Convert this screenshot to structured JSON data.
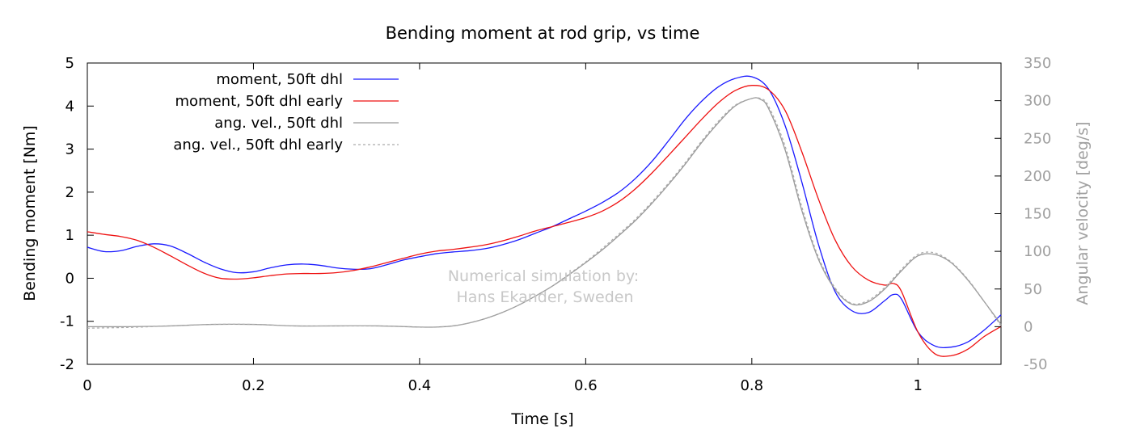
{
  "chart_data": {
    "type": "line",
    "title": "Bending moment at rod grip, vs time",
    "xlabel": "Time [s]",
    "ylabel": "Bending moment [Nm]",
    "y2label": "Angular velocity [deg/s]",
    "xlim": [
      0,
      1.1
    ],
    "ylim": [
      -2,
      5
    ],
    "y2lim": [
      -50,
      350
    ],
    "x_ticks": [
      0,
      0.2,
      0.4,
      0.6,
      0.8,
      1
    ],
    "y_ticks": [
      -2,
      -1,
      0,
      1,
      2,
      3,
      4,
      5
    ],
    "y2_ticks": [
      -50,
      0,
      50,
      100,
      150,
      200,
      250,
      300,
      350
    ],
    "grid": false,
    "legend_position": "top-left",
    "watermark": [
      "Numerical simulation by:",
      "Hans Ekander, Sweden"
    ],
    "colors": {
      "moment": "#1a1aff",
      "moment_early": "#ee1111",
      "angvel": "#999999",
      "angvel_early": "#aaaaaa",
      "y2_axis": "#a0a0a0",
      "watermark": "#c8c8c8"
    },
    "series": [
      {
        "name": "moment, 50ft dhl",
        "axis": "y1",
        "style": "solid",
        "color": "#1a1aff",
        "points": [
          [
            0,
            0.72
          ],
          [
            0.02,
            0.62
          ],
          [
            0.04,
            0.64
          ],
          [
            0.06,
            0.74
          ],
          [
            0.08,
            0.8
          ],
          [
            0.1,
            0.75
          ],
          [
            0.12,
            0.58
          ],
          [
            0.14,
            0.38
          ],
          [
            0.16,
            0.22
          ],
          [
            0.18,
            0.13
          ],
          [
            0.2,
            0.15
          ],
          [
            0.22,
            0.24
          ],
          [
            0.24,
            0.31
          ],
          [
            0.26,
            0.33
          ],
          [
            0.28,
            0.3
          ],
          [
            0.3,
            0.24
          ],
          [
            0.32,
            0.21
          ],
          [
            0.34,
            0.22
          ],
          [
            0.36,
            0.31
          ],
          [
            0.38,
            0.42
          ],
          [
            0.4,
            0.5
          ],
          [
            0.42,
            0.57
          ],
          [
            0.44,
            0.61
          ],
          [
            0.46,
            0.64
          ],
          [
            0.48,
            0.69
          ],
          [
            0.5,
            0.78
          ],
          [
            0.52,
            0.9
          ],
          [
            0.54,
            1.05
          ],
          [
            0.56,
            1.2
          ],
          [
            0.58,
            1.38
          ],
          [
            0.6,
            1.56
          ],
          [
            0.62,
            1.76
          ],
          [
            0.64,
            2.0
          ],
          [
            0.66,
            2.32
          ],
          [
            0.68,
            2.72
          ],
          [
            0.7,
            3.2
          ],
          [
            0.72,
            3.7
          ],
          [
            0.74,
            4.12
          ],
          [
            0.76,
            4.45
          ],
          [
            0.78,
            4.64
          ],
          [
            0.8,
            4.68
          ],
          [
            0.82,
            4.4
          ],
          [
            0.84,
            3.55
          ],
          [
            0.86,
            2.25
          ],
          [
            0.88,
            0.8
          ],
          [
            0.9,
            -0.3
          ],
          [
            0.92,
            -0.75
          ],
          [
            0.94,
            -0.8
          ],
          [
            0.96,
            -0.52
          ],
          [
            0.97,
            -0.38
          ],
          [
            0.98,
            -0.48
          ],
          [
            1.0,
            -1.25
          ],
          [
            1.02,
            -1.57
          ],
          [
            1.04,
            -1.6
          ],
          [
            1.06,
            -1.48
          ],
          [
            1.08,
            -1.2
          ],
          [
            1.1,
            -0.85
          ]
        ]
      },
      {
        "name": "moment, 50ft dhl early",
        "axis": "y1",
        "style": "solid",
        "color": "#ee1111",
        "points": [
          [
            0,
            1.08
          ],
          [
            0.02,
            1.02
          ],
          [
            0.04,
            0.97
          ],
          [
            0.06,
            0.88
          ],
          [
            0.08,
            0.72
          ],
          [
            0.1,
            0.52
          ],
          [
            0.12,
            0.31
          ],
          [
            0.14,
            0.12
          ],
          [
            0.16,
            0.0
          ],
          [
            0.18,
            -0.02
          ],
          [
            0.2,
            0.01
          ],
          [
            0.22,
            0.06
          ],
          [
            0.24,
            0.1
          ],
          [
            0.26,
            0.11
          ],
          [
            0.28,
            0.11
          ],
          [
            0.3,
            0.13
          ],
          [
            0.32,
            0.18
          ],
          [
            0.34,
            0.26
          ],
          [
            0.36,
            0.36
          ],
          [
            0.38,
            0.46
          ],
          [
            0.4,
            0.56
          ],
          [
            0.42,
            0.63
          ],
          [
            0.44,
            0.67
          ],
          [
            0.46,
            0.72
          ],
          [
            0.48,
            0.78
          ],
          [
            0.5,
            0.87
          ],
          [
            0.52,
            0.98
          ],
          [
            0.54,
            1.1
          ],
          [
            0.56,
            1.2
          ],
          [
            0.58,
            1.3
          ],
          [
            0.6,
            1.41
          ],
          [
            0.62,
            1.56
          ],
          [
            0.64,
            1.78
          ],
          [
            0.66,
            2.08
          ],
          [
            0.68,
            2.45
          ],
          [
            0.7,
            2.86
          ],
          [
            0.72,
            3.28
          ],
          [
            0.74,
            3.7
          ],
          [
            0.76,
            4.08
          ],
          [
            0.78,
            4.36
          ],
          [
            0.8,
            4.48
          ],
          [
            0.82,
            4.38
          ],
          [
            0.84,
            3.9
          ],
          [
            0.86,
            2.95
          ],
          [
            0.88,
            1.85
          ],
          [
            0.9,
            0.9
          ],
          [
            0.92,
            0.28
          ],
          [
            0.94,
            -0.04
          ],
          [
            0.96,
            -0.16
          ],
          [
            0.97,
            -0.12
          ],
          [
            0.98,
            -0.3
          ],
          [
            1.0,
            -1.25
          ],
          [
            1.02,
            -1.75
          ],
          [
            1.04,
            -1.8
          ],
          [
            1.06,
            -1.65
          ],
          [
            1.08,
            -1.35
          ],
          [
            1.1,
            -1.12
          ]
        ]
      },
      {
        "name": "ang. vel., 50ft dhl",
        "axis": "y2",
        "style": "solid",
        "color": "#999999",
        "points": [
          [
            0,
            0
          ],
          [
            0.05,
            0
          ],
          [
            0.1,
            1
          ],
          [
            0.15,
            3
          ],
          [
            0.2,
            3
          ],
          [
            0.25,
            1
          ],
          [
            0.3,
            1
          ],
          [
            0.35,
            1
          ],
          [
            0.4,
            -0.5
          ],
          [
            0.42,
            -0.5
          ],
          [
            0.44,
            1
          ],
          [
            0.46,
            5
          ],
          [
            0.48,
            11
          ],
          [
            0.5,
            19
          ],
          [
            0.52,
            29
          ],
          [
            0.54,
            41
          ],
          [
            0.56,
            54
          ],
          [
            0.58,
            69
          ],
          [
            0.6,
            85
          ],
          [
            0.62,
            102
          ],
          [
            0.64,
            121
          ],
          [
            0.66,
            141
          ],
          [
            0.68,
            164
          ],
          [
            0.7,
            189
          ],
          [
            0.72,
            216
          ],
          [
            0.74,
            245
          ],
          [
            0.76,
            271
          ],
          [
            0.78,
            293
          ],
          [
            0.8,
            303
          ],
          [
            0.81,
            302
          ],
          [
            0.82,
            290
          ],
          [
            0.84,
            235
          ],
          [
            0.86,
            155
          ],
          [
            0.88,
            90
          ],
          [
            0.9,
            50
          ],
          [
            0.92,
            30
          ],
          [
            0.94,
            33
          ],
          [
            0.96,
            50
          ],
          [
            0.98,
            74
          ],
          [
            1.0,
            94
          ],
          [
            1.02,
            96
          ],
          [
            1.04,
            85
          ],
          [
            1.06,
            62
          ],
          [
            1.08,
            33
          ],
          [
            1.1,
            3
          ]
        ]
      },
      {
        "name": "ang. vel., 50ft dhl early",
        "axis": "y2",
        "style": "dashed",
        "color": "#aaaaaa",
        "points": [
          [
            0,
            -2
          ],
          [
            0.05,
            -1
          ],
          [
            0.1,
            1
          ],
          [
            0.15,
            3
          ],
          [
            0.2,
            3
          ],
          [
            0.25,
            1
          ],
          [
            0.3,
            1
          ],
          [
            0.35,
            1
          ],
          [
            0.4,
            -0.5
          ],
          [
            0.42,
            -0.5
          ],
          [
            0.44,
            1
          ],
          [
            0.46,
            5
          ],
          [
            0.48,
            11
          ],
          [
            0.5,
            19
          ],
          [
            0.52,
            29
          ],
          [
            0.54,
            41
          ],
          [
            0.56,
            54
          ],
          [
            0.58,
            70
          ],
          [
            0.6,
            86
          ],
          [
            0.62,
            104
          ],
          [
            0.64,
            123
          ],
          [
            0.66,
            143
          ],
          [
            0.68,
            166
          ],
          [
            0.7,
            191
          ],
          [
            0.72,
            218
          ],
          [
            0.74,
            247
          ],
          [
            0.76,
            273
          ],
          [
            0.78,
            294
          ],
          [
            0.8,
            303
          ],
          [
            0.81,
            303
          ],
          [
            0.82,
            293
          ],
          [
            0.84,
            240
          ],
          [
            0.86,
            160
          ],
          [
            0.88,
            93
          ],
          [
            0.9,
            52
          ],
          [
            0.92,
            31
          ],
          [
            0.94,
            35
          ],
          [
            0.96,
            52
          ],
          [
            0.98,
            76
          ],
          [
            1.0,
            96
          ],
          [
            1.02,
            98
          ],
          [
            1.04,
            86
          ],
          [
            1.06,
            63
          ],
          [
            1.08,
            33
          ],
          [
            1.1,
            1
          ]
        ]
      }
    ]
  }
}
